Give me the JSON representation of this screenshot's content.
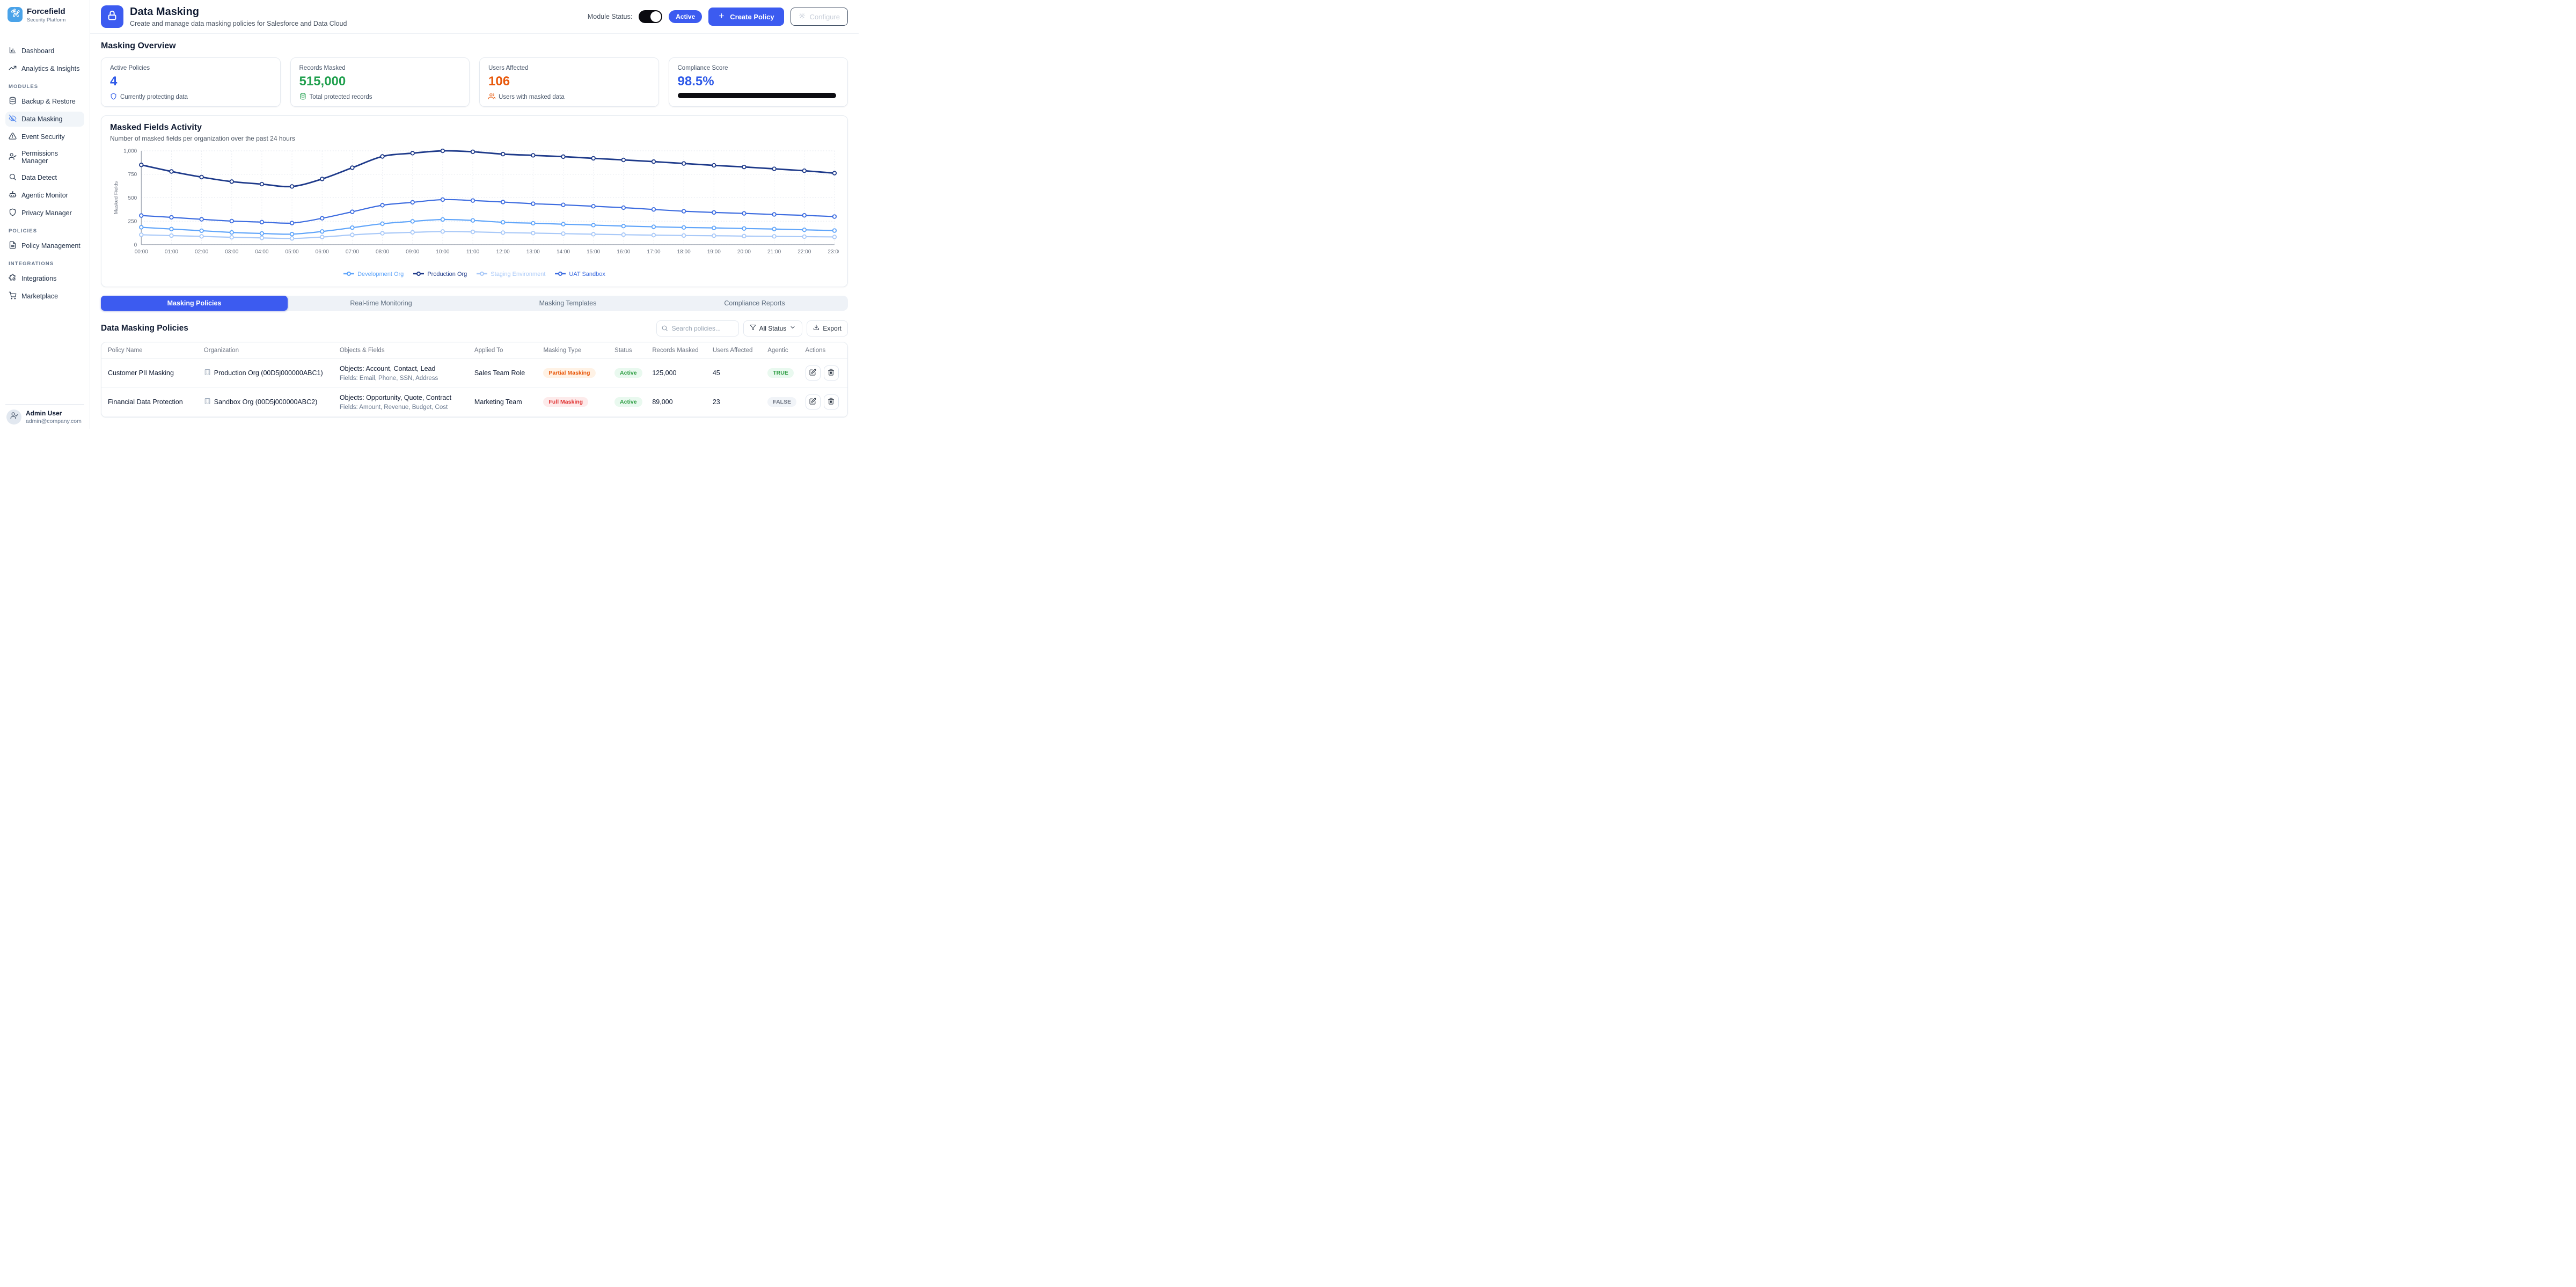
{
  "sidebar": {
    "brand": {
      "name": "Forcefield",
      "tagline": "Security Platform"
    },
    "sections": [
      {
        "label": "",
        "items": [
          {
            "icon": "bar-chart-icon",
            "label": "Dashboard",
            "active": false
          },
          {
            "icon": "trending-up-icon",
            "label": "Analytics & Insights",
            "active": false
          }
        ]
      },
      {
        "label": "MODULES",
        "items": [
          {
            "icon": "database-icon",
            "label": "Backup & Restore",
            "active": false
          },
          {
            "icon": "eye-off-icon",
            "label": "Data Masking",
            "active": true
          },
          {
            "icon": "alert-triangle-icon",
            "label": "Event Security",
            "active": false
          },
          {
            "icon": "user-check-icon",
            "label": "Permissions Manager",
            "active": false
          },
          {
            "icon": "search-icon",
            "label": "Data Detect",
            "active": false
          },
          {
            "icon": "bot-icon",
            "label": "Agentic Monitor",
            "active": false
          },
          {
            "icon": "shield-icon",
            "label": "Privacy Manager",
            "active": false
          }
        ]
      },
      {
        "label": "POLICIES",
        "items": [
          {
            "icon": "file-text-icon",
            "label": "Policy Management",
            "active": false
          }
        ]
      },
      {
        "label": "INTEGRATIONS",
        "items": [
          {
            "icon": "puzzle-icon",
            "label": "Integrations",
            "active": false
          },
          {
            "icon": "cart-icon",
            "label": "Marketplace",
            "active": false
          }
        ]
      }
    ],
    "user": {
      "name": "Admin User",
      "email": "admin@company.com"
    }
  },
  "header": {
    "title": "Data Masking",
    "subtitle": "Create and manage data masking policies for Salesforce and Data Cloud",
    "module_status_label": "Module Status:",
    "status_badge": "Active",
    "create_policy_label": "Create Policy",
    "configure_label": "Configure"
  },
  "overview": {
    "heading": "Masking Overview",
    "cards": [
      {
        "label": "Active Policies",
        "value": "4",
        "value_color": "#2f5ae8",
        "footer": "Currently protecting data",
        "icon": "shield-icon",
        "icon_color": "#2f5ae8"
      },
      {
        "label": "Records Masked",
        "value": "515,000",
        "value_color": "#22a04f",
        "footer": "Total protected records",
        "icon": "database-icon",
        "icon_color": "#22a04f"
      },
      {
        "label": "Users Affected",
        "value": "106",
        "value_color": "#e8590c",
        "footer": "Users with masked data",
        "icon": "users-icon",
        "icon_color": "#e8590c"
      },
      {
        "label": "Compliance Score",
        "value": "98.5%",
        "value_color": "#2f5ae8",
        "progress_pct": 98.5,
        "progress_color": "#0d0d12"
      }
    ]
  },
  "chart_data": {
    "type": "line",
    "title": "Masked Fields Activity",
    "subtitle": "Number of masked fields per organization over the past 24 hours",
    "ylabel": "Masked Fields",
    "xlabel": "",
    "ylim": [
      0,
      1000
    ],
    "yticks": [
      "0",
      "250",
      "500",
      "750",
      "1,000"
    ],
    "grid": "dotted",
    "legend_position": "bottom",
    "x": [
      "00:00",
      "01:00",
      "02:00",
      "03:00",
      "04:00",
      "05:00",
      "06:00",
      "07:00",
      "08:00",
      "09:00",
      "10:00",
      "11:00",
      "12:00",
      "13:00",
      "14:00",
      "15:00",
      "16:00",
      "17:00",
      "18:00",
      "19:00",
      "20:00",
      "21:00",
      "22:00",
      "23:00"
    ],
    "series": [
      {
        "name": "Development Org",
        "color": "#60a5fa",
        "faded": false,
        "values": [
          185,
          166,
          148,
          130,
          119,
          112,
          140,
          181,
          223,
          248,
          268,
          258,
          238,
          228,
          218,
          208,
          198,
          190,
          183,
          178,
          172,
          166,
          158,
          150
        ]
      },
      {
        "name": "Production Org",
        "color": "#1e3a8a",
        "faded": false,
        "values": [
          850,
          780,
          720,
          672,
          645,
          620,
          700,
          820,
          940,
          975,
          1000,
          990,
          965,
          952,
          938,
          920,
          903,
          885,
          865,
          845,
          828,
          808,
          788,
          762
        ]
      },
      {
        "name": "Staging Environment",
        "color": "#a9c9f8",
        "faded": true,
        "values": [
          105,
          96,
          88,
          78,
          72,
          66,
          81,
          104,
          121,
          131,
          140,
          136,
          128,
          123,
          117,
          111,
          106,
          101,
          97,
          95,
          91,
          88,
          85,
          82
        ]
      },
      {
        "name": "UAT Sandbox",
        "color": "#3e6de0",
        "faded": false,
        "values": [
          310,
          291,
          270,
          251,
          240,
          230,
          281,
          350,
          420,
          451,
          480,
          470,
          454,
          436,
          424,
          409,
          394,
          375,
          356,
          343,
          333,
          322,
          312,
          299
        ]
      }
    ]
  },
  "tabs": [
    {
      "label": "Masking Policies",
      "active": true
    },
    {
      "label": "Real-time Monitoring",
      "active": false
    },
    {
      "label": "Masking Templates",
      "active": false
    },
    {
      "label": "Compliance Reports",
      "active": false
    }
  ],
  "policies": {
    "heading": "Data Masking Policies",
    "search_placeholder": "Search policies...",
    "filter_label": "All Status",
    "export_label": "Export",
    "columns": [
      "Policy Name",
      "Organization",
      "Objects & Fields",
      "Applied To",
      "Masking Type",
      "Status",
      "Records Masked",
      "Users Affected",
      "Agentic",
      "Actions"
    ],
    "rows": [
      {
        "policy_name": "Customer PII Masking",
        "organization": "Production Org (00D5j000000ABC1)",
        "objects": "Objects: Account, Contact, Lead",
        "fields": "Fields: Email, Phone, SSN, Address",
        "applied_to": "Sales Team Role",
        "masking_type": "Partial Masking",
        "masking_type_variant": "partial",
        "status": "Active",
        "records_masked": "125,000",
        "users_affected": "45",
        "agentic": "TRUE"
      },
      {
        "policy_name": "Financial Data Protection",
        "organization": "Sandbox Org (00D5j000000ABC2)",
        "objects": "Objects: Opportunity, Quote, Contract",
        "fields": "Fields: Amount, Revenue, Budget, Cost",
        "applied_to": "Marketing Team",
        "masking_type": "Full Masking",
        "masking_type_variant": "full",
        "status": "Active",
        "records_masked": "89,000",
        "users_affected": "23",
        "agentic": "FALSE"
      }
    ]
  }
}
